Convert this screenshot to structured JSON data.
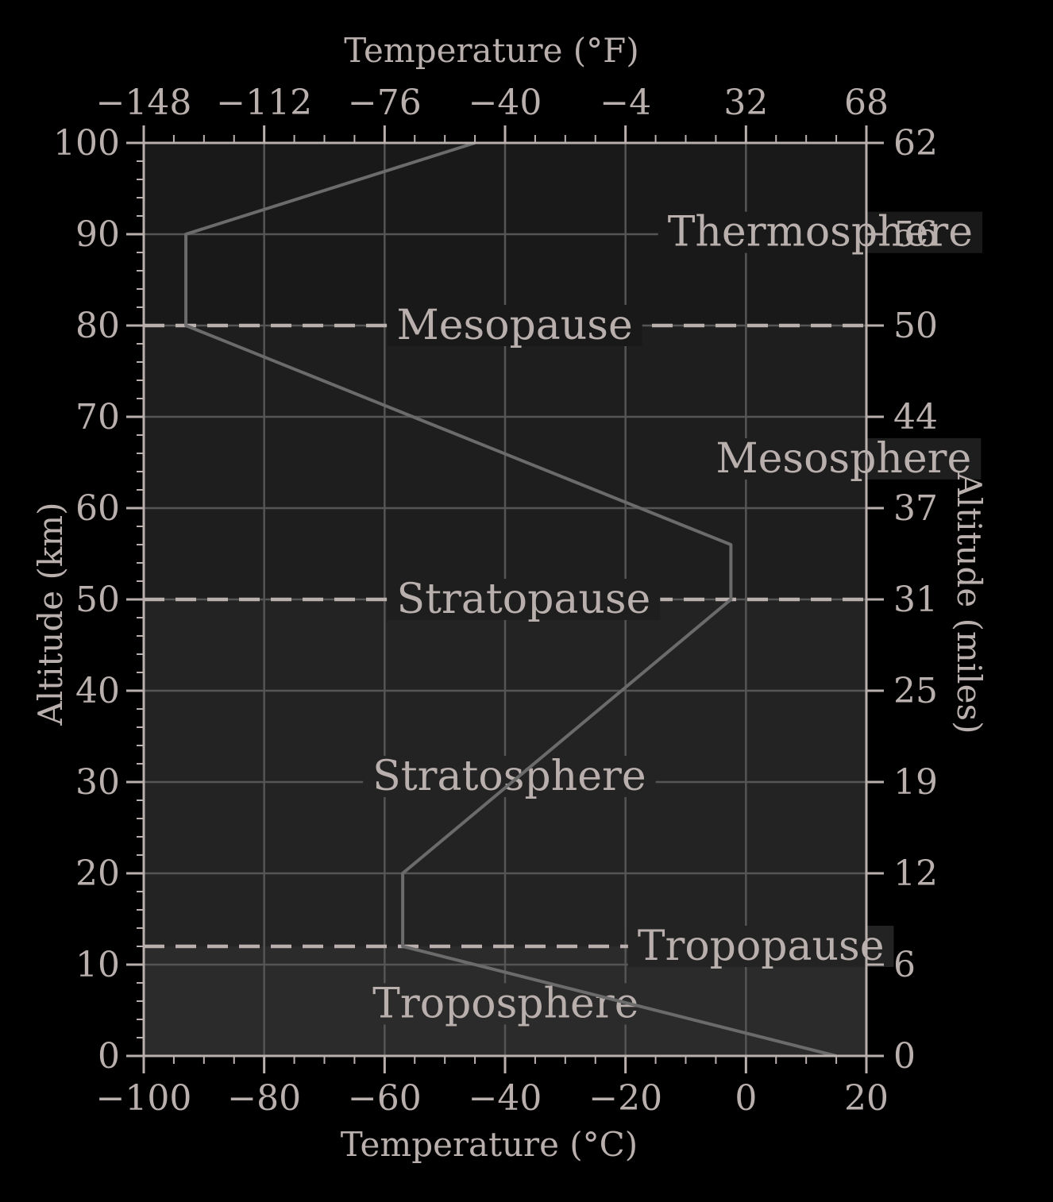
{
  "chart_data": {
    "type": "line",
    "title": "",
    "xlabel_bottom": "Temperature (°C)",
    "xlabel_top": "Temperature (°F)",
    "ylabel_left": "Altitude (km)",
    "ylabel_right": "Altitude (miles)",
    "xlim": [
      -100,
      20
    ],
    "ylim": [
      0,
      100
    ],
    "grid": true,
    "x_ticks_bottom": [
      {
        "value": -100,
        "label": "−100"
      },
      {
        "value": -80,
        "label": "−80"
      },
      {
        "value": -60,
        "label": "−60"
      },
      {
        "value": -40,
        "label": "−40"
      },
      {
        "value": -20,
        "label": "−20"
      },
      {
        "value": 0,
        "label": "0"
      },
      {
        "value": 20,
        "label": "20"
      }
    ],
    "x_ticks_top": [
      {
        "value": -100,
        "label": "−148"
      },
      {
        "value": -80,
        "label": "−112"
      },
      {
        "value": -60,
        "label": "−76"
      },
      {
        "value": -40,
        "label": "−40"
      },
      {
        "value": -20,
        "label": "−4"
      },
      {
        "value": 0,
        "label": "32"
      },
      {
        "value": 20,
        "label": "68"
      }
    ],
    "y_ticks_left": [
      {
        "value": 0,
        "label": "0"
      },
      {
        "value": 10,
        "label": "10"
      },
      {
        "value": 20,
        "label": "20"
      },
      {
        "value": 30,
        "label": "30"
      },
      {
        "value": 40,
        "label": "40"
      },
      {
        "value": 50,
        "label": "50"
      },
      {
        "value": 60,
        "label": "60"
      },
      {
        "value": 70,
        "label": "70"
      },
      {
        "value": 80,
        "label": "80"
      },
      {
        "value": 90,
        "label": "90"
      },
      {
        "value": 100,
        "label": "100"
      }
    ],
    "y_ticks_right": [
      {
        "value": 0,
        "label": "0"
      },
      {
        "value": 10,
        "label": "6"
      },
      {
        "value": 20,
        "label": "12"
      },
      {
        "value": 30,
        "label": "19"
      },
      {
        "value": 40,
        "label": "25"
      },
      {
        "value": 50,
        "label": "31"
      },
      {
        "value": 60,
        "label": "37"
      },
      {
        "value": 70,
        "label": "44"
      },
      {
        "value": 80,
        "label": "50"
      },
      {
        "value": 90,
        "label": "56"
      },
      {
        "value": 100,
        "label": "62"
      }
    ],
    "series": [
      {
        "x": [
          15,
          -57,
          -57,
          -2.5,
          -2.5,
          -93,
          -93,
          -45
        ],
        "y": [
          0,
          12,
          20,
          50,
          56,
          80,
          90,
          100
        ]
      }
    ],
    "layers": [
      {
        "name": "Troposphere",
        "bottom": 0,
        "top": 12,
        "color": "#2a2b2a"
      },
      {
        "name": "Stratosphere",
        "bottom": 12,
        "top": 50,
        "color": "#232323"
      },
      {
        "name": "Mesosphere",
        "bottom": 50,
        "top": 80,
        "color": "#1e1e1e"
      },
      {
        "name": "Thermosphere",
        "bottom": 80,
        "top": 100,
        "color": "#191919"
      }
    ],
    "boundaries": [
      {
        "name": "Tropopause",
        "altitude": 12,
        "label_x": -18
      },
      {
        "name": "Stratopause",
        "altitude": 50,
        "label_x": -58
      },
      {
        "name": "Mesopause",
        "altitude": 80,
        "label_x": -58
      }
    ],
    "layer_labels": [
      {
        "name": "Troposphere",
        "x": -62,
        "y": 5.7
      },
      {
        "name": "Stratosphere",
        "x": -62,
        "y": 30.6
      },
      {
        "name": "Mesosphere",
        "x": -5,
        "y": 65.4
      },
      {
        "name": "Thermosphere",
        "x": -13,
        "y": 90.2
      }
    ],
    "colors": {
      "background": "#000000",
      "text": "#b9b0ae",
      "grid": "#555555",
      "line": "#6b6b6b",
      "boundary": "#b9b0ae"
    }
  }
}
